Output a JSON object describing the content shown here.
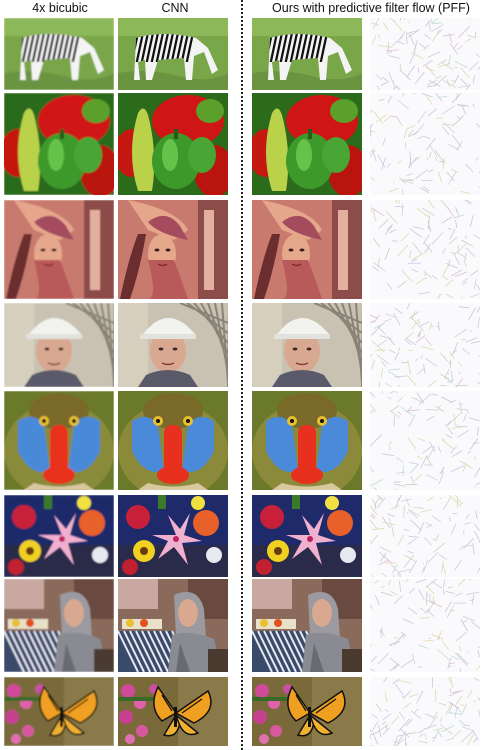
{
  "headers": {
    "col1": "4x bicubic",
    "col2": "CNN",
    "col3": "Ours with predictive filter flow (PFF)"
  },
  "rows": [
    {
      "id": "zebra",
      "subject": "zebra"
    },
    {
      "id": "peppers",
      "subject": "peppers"
    },
    {
      "id": "lena",
      "subject": "portrait"
    },
    {
      "id": "foreman",
      "subject": "man-with-hardhat"
    },
    {
      "id": "baboon",
      "subject": "mandrill"
    },
    {
      "id": "flowers",
      "subject": "flowers"
    },
    {
      "id": "barbara",
      "subject": "woman-with-scarf"
    },
    {
      "id": "monarch",
      "subject": "butterfly"
    }
  ],
  "columns": [
    "bicubic",
    "cnn",
    "pff",
    "filter-flow"
  ]
}
